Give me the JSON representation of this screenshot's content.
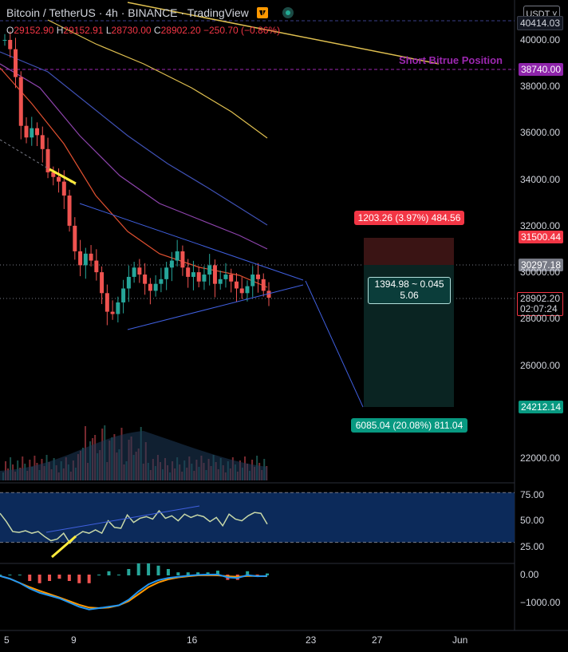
{
  "header": {
    "symbol": "Bitcoin / TetherUS",
    "interval": "4h",
    "exchange": "BINANCE",
    "platform": "TradingView",
    "currency": "USDT"
  },
  "ohlc": {
    "o_label": "O",
    "o": "29152.90",
    "h_label": "H",
    "h": "29152.91",
    "l_label": "L",
    "l": "28730.00",
    "c_label": "C",
    "c": "28902.20",
    "change": "−250.70 (−0.86%)"
  },
  "annotations": {
    "short_position": "Short Bitrue Position",
    "risk_box": "1203.26 (3.97%) 484.56",
    "center_box_line1": "1394.98 ~ 0.045",
    "center_box_line2": "5.06",
    "target_box": "6085.04 (20.08%) 811.04"
  },
  "price_labels": {
    "top": "40414.03",
    "p38740": "38740.00",
    "p31500": "31500.44",
    "p30297": "30297.18",
    "last": "28902.20",
    "countdown": "02:07:24",
    "p24212": "24212.14"
  },
  "colors": {
    "up": "#26a69a",
    "down": "#ef5350",
    "ma_yellow": "#e0c050",
    "ma_blue": "#3f51b5",
    "ma_purple": "#8e44ad",
    "ma_red": "#e05030",
    "rsi_bg": "#0c2a5a",
    "macd": "#2196f3",
    "signal": "#ff9800"
  },
  "chart_data": {
    "type": "candlestick",
    "x_ticks": [
      "5",
      "9",
      "16",
      "23",
      "27",
      "Jun"
    ],
    "y_ticks": [
      "40000.00",
      "38000.00",
      "36000.00",
      "34000.00",
      "32000.00",
      "30000.00",
      "28000.00",
      "26000.00",
      "22000.00"
    ],
    "ylim": [
      20500,
      41000
    ],
    "price_path": [
      40000,
      39600,
      38400,
      36300,
      35800,
      36200,
      35900,
      35300,
      34300,
      34100,
      33900,
      33300,
      32000,
      30900,
      30300,
      30800,
      30500,
      30000,
      29100,
      28300,
      28200,
      28700,
      29300,
      29800,
      30200,
      29900,
      29500,
      29200,
      29500,
      29700,
      30200,
      30500,
      30900,
      30200,
      29800,
      30000,
      29600,
      29900,
      30300,
      29500,
      29700,
      29900,
      29600,
      29300,
      29100,
      29400,
      29900,
      29700,
      29200,
      28902
    ],
    "rsi": {
      "ticks": [
        "75.00",
        "50.00",
        "25.00"
      ],
      "ylim": [
        10,
        85
      ],
      "overbought": 80,
      "oversold": 20,
      "values": [
        55,
        45,
        33,
        32,
        34,
        31,
        33,
        27,
        22,
        24,
        31,
        19,
        28,
        33,
        31,
        35,
        31,
        46,
        38,
        37,
        53,
        44,
        49,
        51,
        48,
        58,
        49,
        52,
        46,
        54,
        50,
        53,
        51,
        45,
        50,
        40,
        54,
        48,
        46,
        52,
        56,
        55,
        42
      ]
    },
    "macd": {
      "ticks": [
        "0.00",
        "−1000.00"
      ],
      "ylim": [
        -1600,
        400
      ],
      "macd_line": [
        -50,
        -150,
        -300,
        -500,
        -650,
        -750,
        -850,
        -1000,
        -1150,
        -1250,
        -1200,
        -1150,
        -1100,
        -900,
        -600,
        -350,
        -200,
        -120,
        -80,
        -40,
        -10,
        0,
        5,
        -100,
        -120,
        -20,
        -60,
        -50
      ],
      "signal_line": [
        -50,
        -150,
        -300,
        -450,
        -580,
        -700,
        -820,
        -950,
        -1080,
        -1180,
        -1200,
        -1180,
        -1100,
        -950,
        -700,
        -450,
        -280,
        -170,
        -100,
        -60,
        -30,
        -20,
        -30,
        -60,
        -80,
        -50,
        -50,
        -60
      ]
    }
  }
}
